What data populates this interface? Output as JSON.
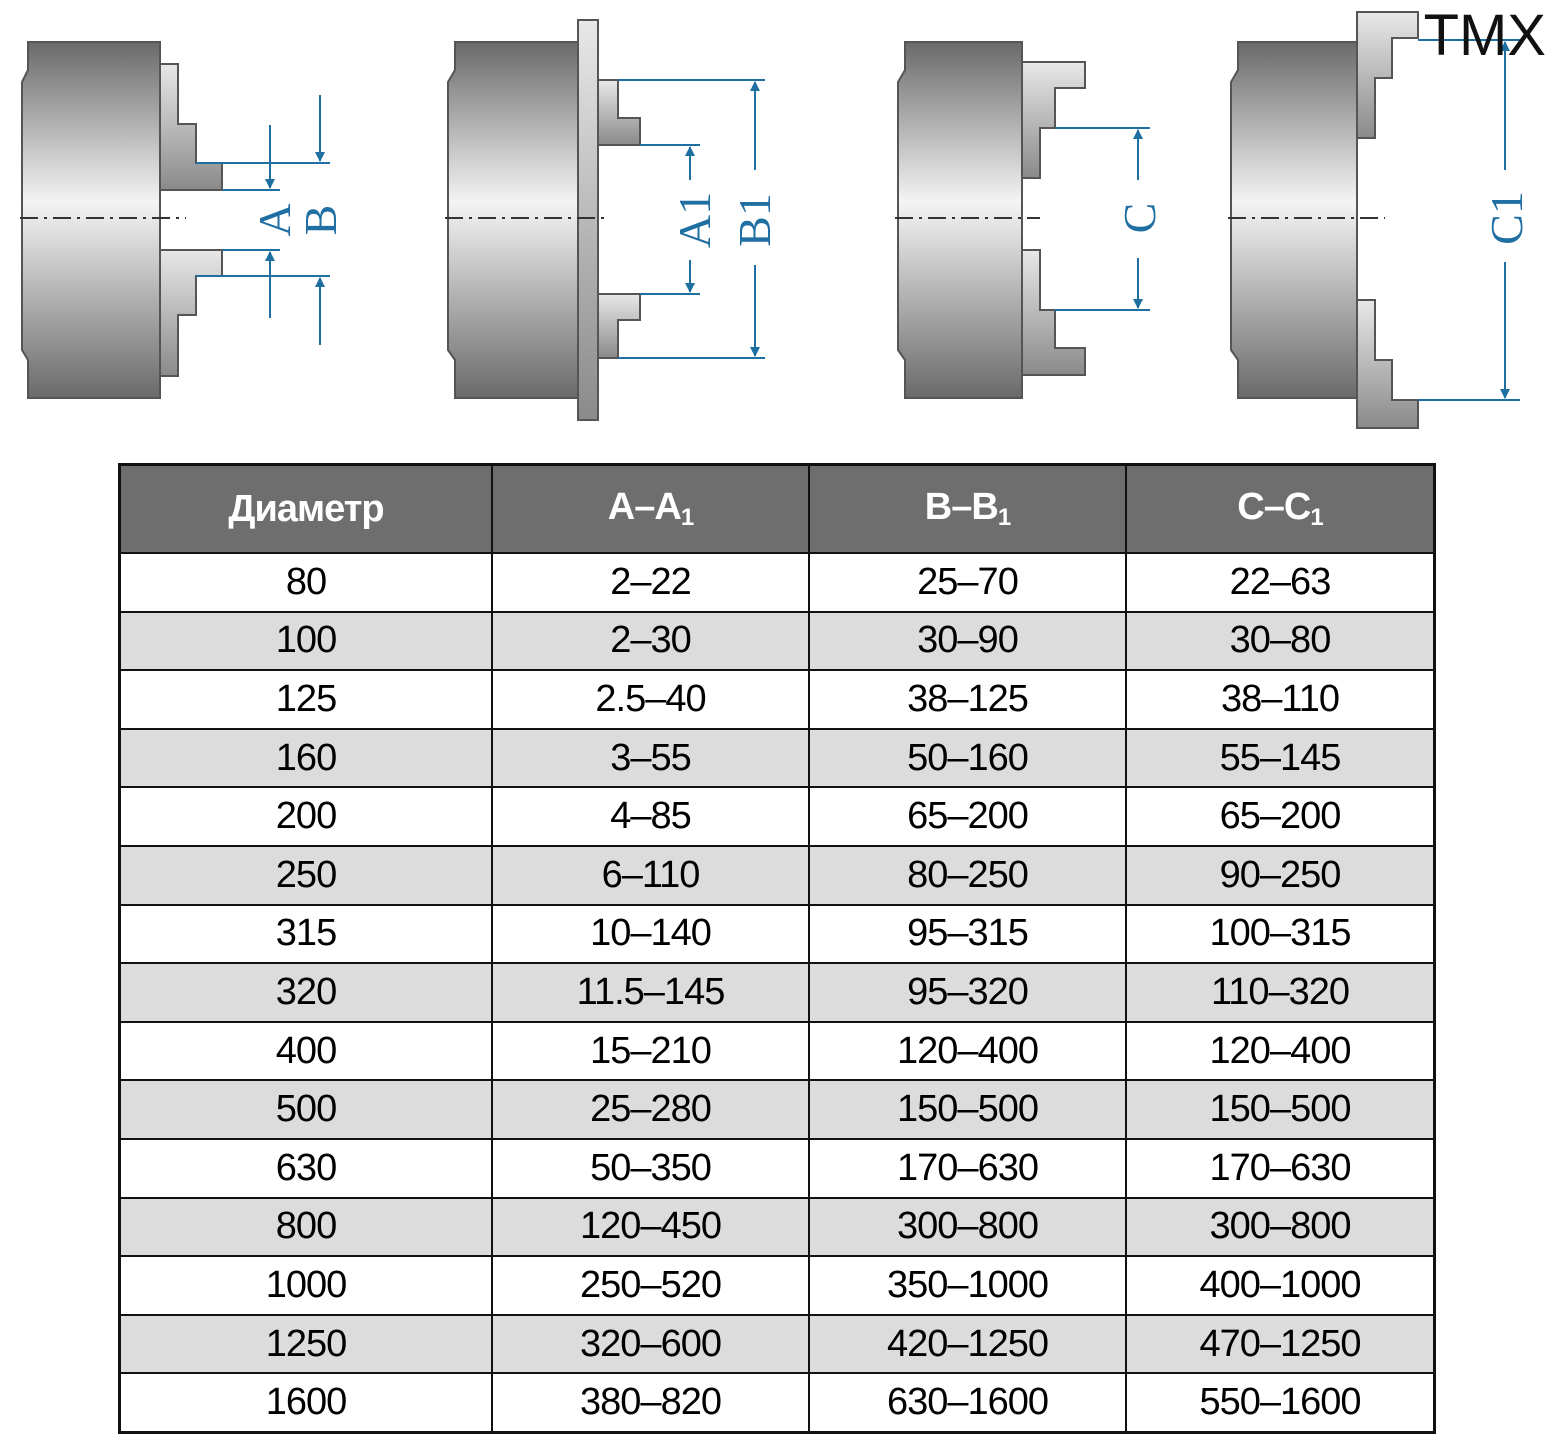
{
  "watermark": "TMX",
  "diagrams": [
    {
      "labels": [
        "A",
        "B"
      ]
    },
    {
      "labels": [
        "A1",
        "B1"
      ]
    },
    {
      "labels": [
        "C"
      ]
    },
    {
      "labels": [
        "C1"
      ]
    }
  ],
  "colors": {
    "dimension_lines": "#1f6fa3",
    "header_bg": "#6e6e6e",
    "alt_row_bg": "#dcdcdc"
  },
  "table": {
    "headers": [
      {
        "main": "Диаметр",
        "sub": ""
      },
      {
        "main": "A–A",
        "sub": "1"
      },
      {
        "main": "B–B",
        "sub": "1"
      },
      {
        "main": "C–C",
        "sub": "1"
      }
    ],
    "rows": [
      [
        "80",
        "2–22",
        "25–70",
        "22–63"
      ],
      [
        "100",
        "2–30",
        "30–90",
        "30–80"
      ],
      [
        "125",
        "2.5–40",
        "38–125",
        "38–110"
      ],
      [
        "160",
        "3–55",
        "50–160",
        "55–145"
      ],
      [
        "200",
        "4–85",
        "65–200",
        "65–200"
      ],
      [
        "250",
        "6–110",
        "80–250",
        "90–250"
      ],
      [
        "315",
        "10–140",
        "95–315",
        "100–315"
      ],
      [
        "320",
        "11.5–145",
        "95–320",
        "110–320"
      ],
      [
        "400",
        "15–210",
        "120–400",
        "120–400"
      ],
      [
        "500",
        "25–280",
        "150–500",
        "150–500"
      ],
      [
        "630",
        "50–350",
        "170–630",
        "170–630"
      ],
      [
        "800",
        "120–450",
        "300–800",
        "300–800"
      ],
      [
        "1000",
        "250–520",
        "350–1000",
        "400–1000"
      ],
      [
        "1250",
        "320–600",
        "420–1250",
        "470–1250"
      ],
      [
        "1600",
        "380–820",
        "630–1600",
        "550–1600"
      ]
    ]
  }
}
